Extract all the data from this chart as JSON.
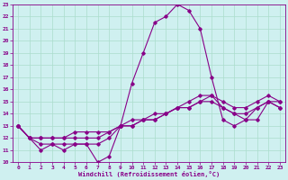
{
  "xlabel": "Windchill (Refroidissement éolien,°C)",
  "xlim": [
    -0.5,
    23.5
  ],
  "ylim": [
    10,
    23
  ],
  "xticks": [
    0,
    1,
    2,
    3,
    4,
    5,
    6,
    7,
    8,
    9,
    10,
    11,
    12,
    13,
    14,
    15,
    16,
    17,
    18,
    19,
    20,
    21,
    22,
    23
  ],
  "yticks": [
    10,
    11,
    12,
    13,
    14,
    15,
    16,
    17,
    18,
    19,
    20,
    21,
    22,
    23
  ],
  "background_color": "#cff0f0",
  "line_color": "#880088",
  "grid_color": "#aaddcc",
  "main_line": [
    13.0,
    12.0,
    11.0,
    11.5,
    11.0,
    11.5,
    11.5,
    10.0,
    10.5,
    13.0,
    16.5,
    19.0,
    21.5,
    22.0,
    23.0,
    22.5,
    21.0,
    17.0,
    13.5,
    13.0,
    13.5,
    13.5,
    15.0,
    14.5
  ],
  "line2": [
    13.0,
    12.0,
    11.5,
    11.5,
    11.5,
    11.5,
    11.5,
    11.5,
    12.0,
    13.0,
    13.5,
    13.5,
    14.0,
    14.0,
    14.5,
    15.0,
    15.5,
    15.5,
    14.5,
    14.0,
    13.5,
    14.5,
    15.0,
    14.5
  ],
  "line3": [
    13.0,
    12.0,
    12.0,
    12.0,
    12.0,
    12.0,
    12.0,
    12.0,
    12.5,
    13.0,
    13.0,
    13.5,
    13.5,
    14.0,
    14.5,
    14.5,
    15.0,
    15.0,
    14.5,
    14.0,
    14.0,
    14.5,
    15.0,
    15.0
  ],
  "line4": [
    13.0,
    12.0,
    12.0,
    12.0,
    12.0,
    12.5,
    12.5,
    12.5,
    12.5,
    13.0,
    13.0,
    13.5,
    13.5,
    14.0,
    14.5,
    14.5,
    15.0,
    15.5,
    15.0,
    14.5,
    14.5,
    15.0,
    15.5,
    15.0
  ]
}
